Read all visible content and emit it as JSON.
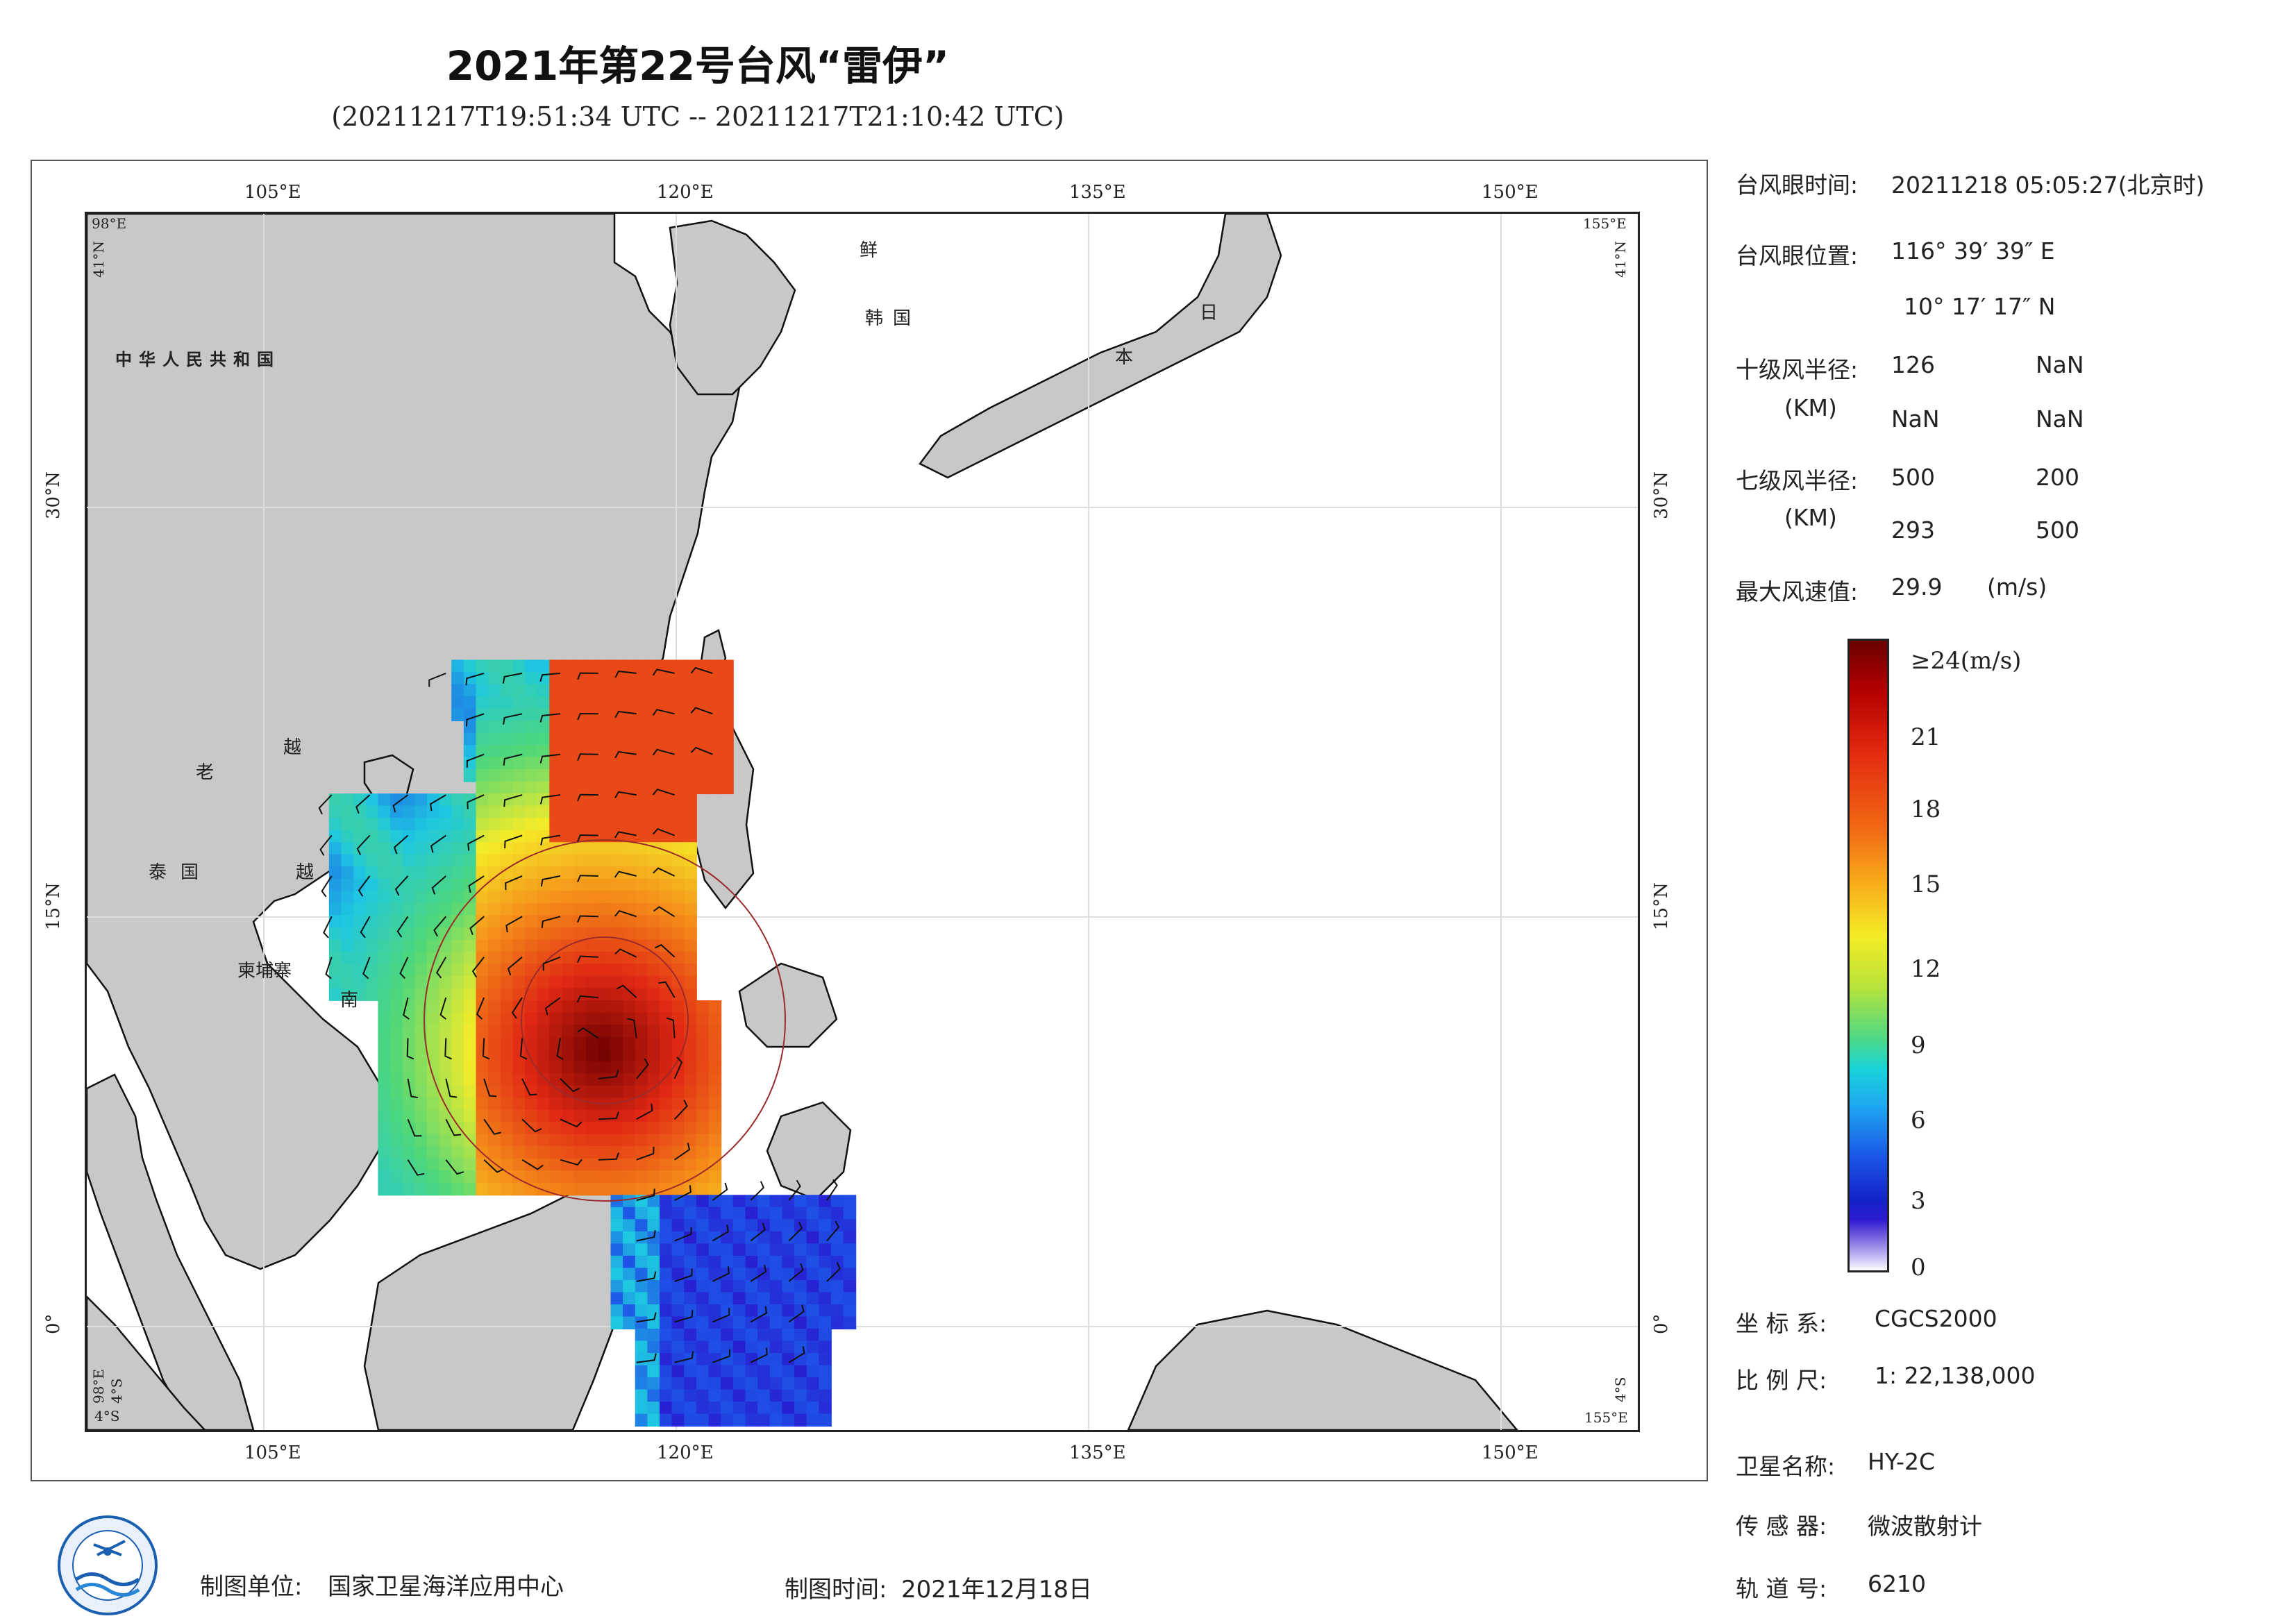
{
  "title": "2021年第22号台风“雷伊”",
  "subtitle": "(20211217T19:51:34 UTC -- 20211217T21:10:42 UTC)",
  "map": {
    "top_lon_labels": [
      "105°E",
      "120°E",
      "135°E",
      "150°E"
    ],
    "bottom_lon_labels": [
      "105°E",
      "120°E",
      "135°E",
      "150°E"
    ],
    "lat_labels_left": [
      "30°N",
      "15°N",
      "0°"
    ],
    "lat_labels_right": [
      "30°N",
      "15°N",
      "0°"
    ],
    "corner_tl_lon": "98°E",
    "corner_tl_lat": "41°N",
    "corner_tr_lon": "155°E",
    "corner_tr_lat": "41°N",
    "corner_bl_lat": "4°S",
    "corner_bl_lon": "98°E",
    "corner_bl_lat2": "4°S",
    "corner_br_lat": "4°S",
    "corner_br_lon": "155°E",
    "place_names": {
      "china": "中华人民共和国",
      "laos": "老",
      "vietnam_1": "越",
      "vietnam_2": "越",
      "vietnam_3": "南",
      "thailand": "泰国",
      "cambodia": "柬埔寨",
      "korea_n": "鲜",
      "korea_s": "韩国",
      "japan_1": "日",
      "japan_2": "本"
    },
    "typhoon_eye": {
      "lon": 116.66,
      "lat": 10.29
    },
    "colors": {
      "land": "#c8c8c8",
      "ocean": "#ffffff",
      "coast": "#111111"
    }
  },
  "info": {
    "eye_time_label": "台风眼时间:",
    "eye_time_value": "20211218 05:05:27(北京时)",
    "eye_pos_label": "台风眼位置:",
    "eye_pos_lon": "116° 39′ 39″ E",
    "eye_pos_lat": "10° 17′ 17″ N",
    "r10_label": "十级风半径:",
    "r10_unit": "(KM)",
    "r10_values": [
      "126",
      "NaN",
      "NaN",
      "NaN"
    ],
    "r7_label": "七级风半径:",
    "r7_unit": "(KM)",
    "r7_values": [
      "500",
      "200",
      "293",
      "500"
    ],
    "max_wind_label": "最大风速值:",
    "max_wind_value": "29.9",
    "max_wind_unit": "(m/s)"
  },
  "colorbar": {
    "ticks": [
      "≥24(m/s)",
      "21",
      "18",
      "15",
      "12",
      "9",
      "6",
      "3",
      "0"
    ]
  },
  "meta": {
    "crs_label": "坐 标 系:",
    "crs_value": "CGCS2000",
    "scale_label": "比 例 尺:",
    "scale_value": "1: 22,138,000",
    "satellite_label": "卫星名称:",
    "satellite_value": "HY-2C",
    "sensor_label": "传 感 器:",
    "sensor_value": "微波散射计",
    "orbit_label": "轨 道 号:",
    "orbit_value": "6210"
  },
  "footer": {
    "producer_label": "制图单位:",
    "producer_value": "国家卫星海洋应用中心",
    "date_label": "制图时间:",
    "date_value": "2021年12月18日"
  }
}
